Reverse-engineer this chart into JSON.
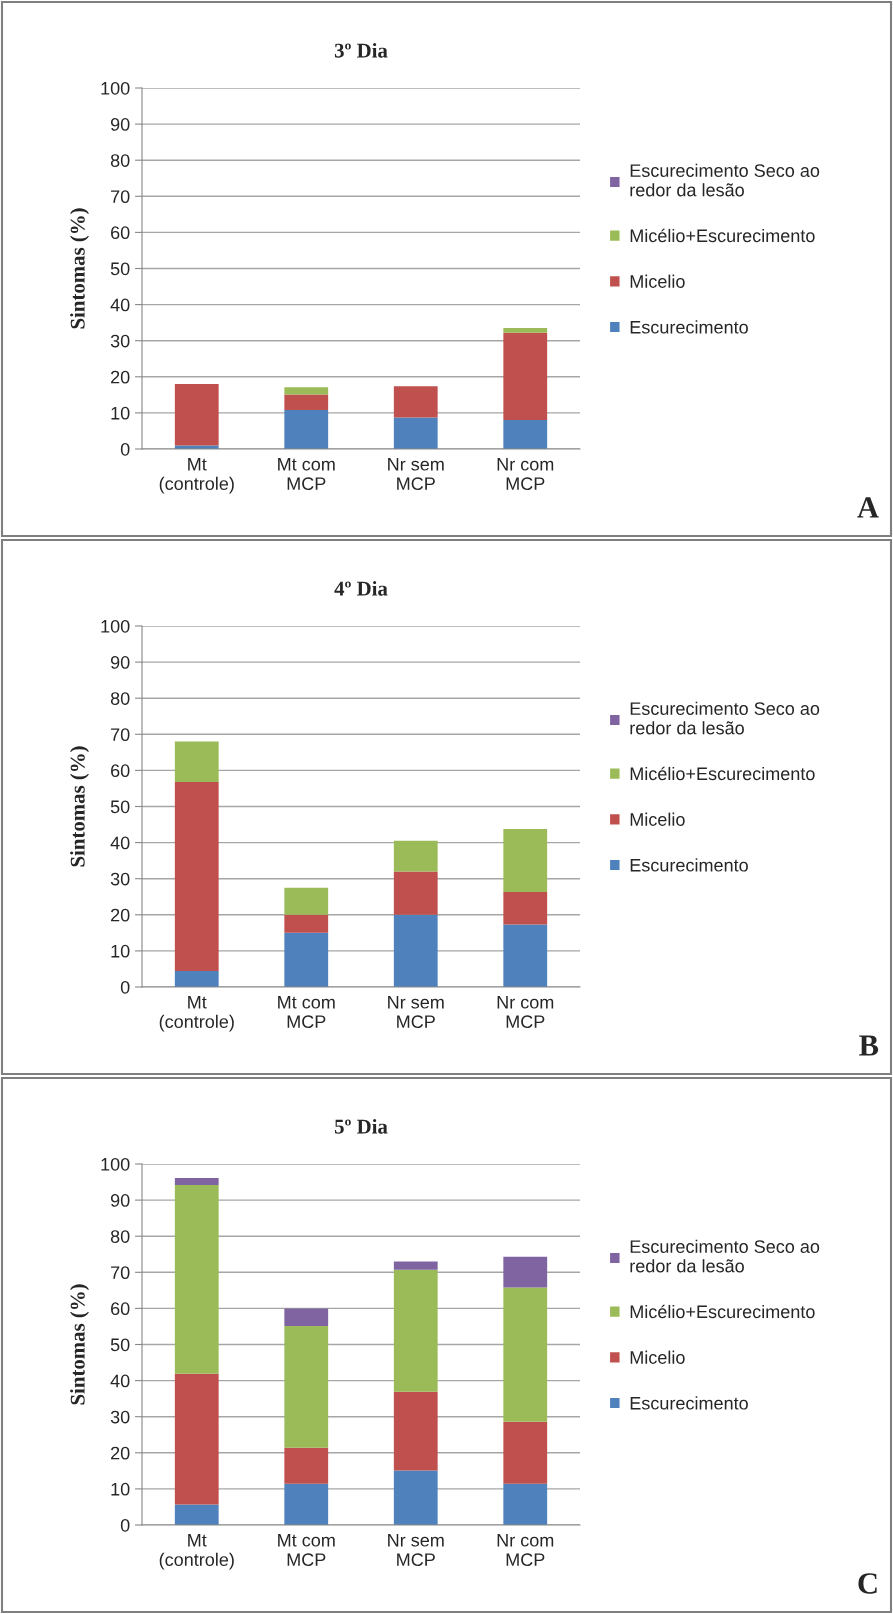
{
  "chart_data": [
    {
      "type": "bar",
      "title": "3º Dia",
      "ylabel": "Sintomas (%)",
      "categories": [
        "Mt\n(controle)",
        "Mt com\nMCP",
        "Nr sem\nMCP",
        "Nr com\nMCP"
      ],
      "stacked": true,
      "ylim": [
        0,
        100
      ],
      "yticks": [
        0,
        10,
        20,
        30,
        40,
        50,
        60,
        70,
        80,
        90,
        100
      ],
      "grid": "y",
      "legend": "right",
      "annotations": [
        "A"
      ],
      "series": [
        {
          "name": "Escurecimento",
          "color": "#4f81bd",
          "values": [
            1,
            10.8,
            8.7,
            8
          ]
        },
        {
          "name": "Micelio",
          "color": "#c0504d",
          "values": [
            17,
            4.3,
            8.7,
            24.2
          ]
        },
        {
          "name": "Micélio+Escurecimento",
          "color": "#9bbb59",
          "values": [
            0,
            2,
            0,
            1.3
          ]
        },
        {
          "name": "Escurecimento Seco ao\nredor da lesão",
          "color": "#8064a2",
          "values": [
            0,
            0,
            0,
            0
          ]
        }
      ]
    },
    {
      "type": "bar",
      "title": "4º Dia",
      "ylabel": "Sintomas (%)",
      "categories": [
        "Mt\n(controle)",
        "Mt com\nMCP",
        "Nr sem\nMCP",
        "Nr com\nMCP"
      ],
      "stacked": true,
      "ylim": [
        0,
        100
      ],
      "yticks": [
        0,
        10,
        20,
        30,
        40,
        50,
        60,
        70,
        80,
        90,
        100
      ],
      "grid": "y",
      "legend": "right",
      "annotations": [
        "B"
      ],
      "series": [
        {
          "name": "Escurecimento",
          "color": "#4f81bd",
          "values": [
            4.4,
            15,
            20,
            17.3
          ]
        },
        {
          "name": "Micelio",
          "color": "#c0504d",
          "values": [
            52.4,
            5,
            12,
            9
          ]
        },
        {
          "name": "Micélio+Escurecimento",
          "color": "#9bbb59",
          "values": [
            11.2,
            7.5,
            8.5,
            17.5
          ]
        },
        {
          "name": "Escurecimento Seco ao\nredor da lesão",
          "color": "#8064a2",
          "values": [
            0,
            0,
            0,
            0
          ]
        }
      ]
    },
    {
      "type": "bar",
      "title": "5º Dia",
      "ylabel": "Sintomas (%)",
      "categories": [
        "Mt\n(controle)",
        "Mt com\nMCP",
        "Nr sem\nMCP",
        "Nr com\nMCP"
      ],
      "stacked": true,
      "ylim": [
        0,
        100
      ],
      "yticks": [
        0,
        10,
        20,
        30,
        40,
        50,
        60,
        70,
        80,
        90,
        100
      ],
      "grid": "y",
      "legend": "right",
      "annotations": [
        "C"
      ],
      "series": [
        {
          "name": "Escurecimento",
          "color": "#4f81bd",
          "values": [
            5.7,
            11.4,
            15.1,
            11.4
          ]
        },
        {
          "name": "Micelio",
          "color": "#c0504d",
          "values": [
            36.2,
            10,
            21.8,
            17.2
          ]
        },
        {
          "name": "Micélio+Escurecimento",
          "color": "#9bbb59",
          "values": [
            52.3,
            33.7,
            33.8,
            37.2
          ]
        },
        {
          "name": "Escurecimento Seco ao\nredor da lesão",
          "color": "#8064a2",
          "values": [
            1.9,
            4.9,
            2.3,
            8.5
          ]
        }
      ]
    }
  ]
}
